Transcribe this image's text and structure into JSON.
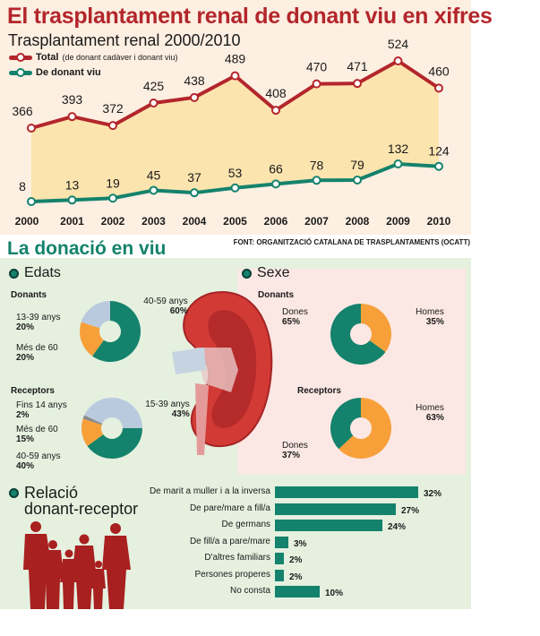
{
  "title": "El trasplantament renal de donant viu en xifres",
  "source": "FONT: ORGANITZACIÓ CATALANA DE TRASPLANTAMENTS (OCATT)",
  "section2_title": "La donació en viu",
  "colors": {
    "red": "#b3262b",
    "teal": "#14826c",
    "orange": "#f7a03a",
    "lightblue": "#b9c9de",
    "gray": "#8a8a8a"
  },
  "chart_data": [
    {
      "type": "line",
      "title": "Trasplantament renal 2000/2010",
      "categories": [
        "2000",
        "2001",
        "2002",
        "2003",
        "2004",
        "2005",
        "2006",
        "2007",
        "2008",
        "2009",
        "2010"
      ],
      "series": [
        {
          "name": "Total",
          "name_note": "(de donant cadàver i donant viu)",
          "values": [
            366,
            393,
            372,
            425,
            438,
            489,
            408,
            470,
            471,
            524,
            460
          ]
        },
        {
          "name": "De donant viu",
          "values": [
            8,
            13,
            19,
            45,
            37,
            53,
            66,
            78,
            79,
            132,
            124
          ]
        }
      ]
    },
    {
      "type": "pie",
      "section": "Edats",
      "title": "Donants",
      "slices": [
        {
          "label": "40-59 anys",
          "value": 60,
          "text": "60%"
        },
        {
          "label": "Més de 60",
          "value": 20,
          "text": "20%"
        },
        {
          "label": "13-39 anys",
          "value": 20,
          "text": "20%"
        }
      ]
    },
    {
      "type": "pie",
      "section": "Edats",
      "title": "Receptors",
      "slices": [
        {
          "label": "40-59 anys",
          "value": 40,
          "text": "40%"
        },
        {
          "label": "Més de 60",
          "value": 15,
          "text": "15%"
        },
        {
          "label": "Fins 14 anys",
          "value": 2,
          "text": "2%"
        },
        {
          "label": "15-39 anys",
          "value": 43,
          "text": "43%"
        }
      ]
    },
    {
      "type": "pie",
      "section": "Sexe",
      "title": "Donants",
      "slices": [
        {
          "label": "Homes",
          "value": 35,
          "text": "35%"
        },
        {
          "label": "Dones",
          "value": 65,
          "text": "65%"
        }
      ]
    },
    {
      "type": "pie",
      "section": "Sexe",
      "title": "Receptors",
      "slices": [
        {
          "label": "Homes",
          "value": 63,
          "text": "63%"
        },
        {
          "label": "Dones",
          "value": 37,
          "text": "37%"
        }
      ]
    },
    {
      "type": "bar",
      "title": "Relació donant-receptor",
      "orientation": "horizontal",
      "categories": [
        "De marit a muller i a la inversa",
        "De pare/mare a fill/a",
        "De germans",
        "De fill/a a pare/mare",
        "D'altres familiars",
        "Persones properes",
        "No consta"
      ],
      "values": [
        32,
        27,
        24,
        3,
        2,
        2,
        10
      ],
      "labels": [
        "32%",
        "27%",
        "24%",
        "3%",
        "2%",
        "2%",
        "10%"
      ]
    }
  ],
  "sections": {
    "edats": "Edats",
    "sexe": "Sexe",
    "relacio_1": "Relació",
    "relacio_2": "donant-receptor"
  }
}
